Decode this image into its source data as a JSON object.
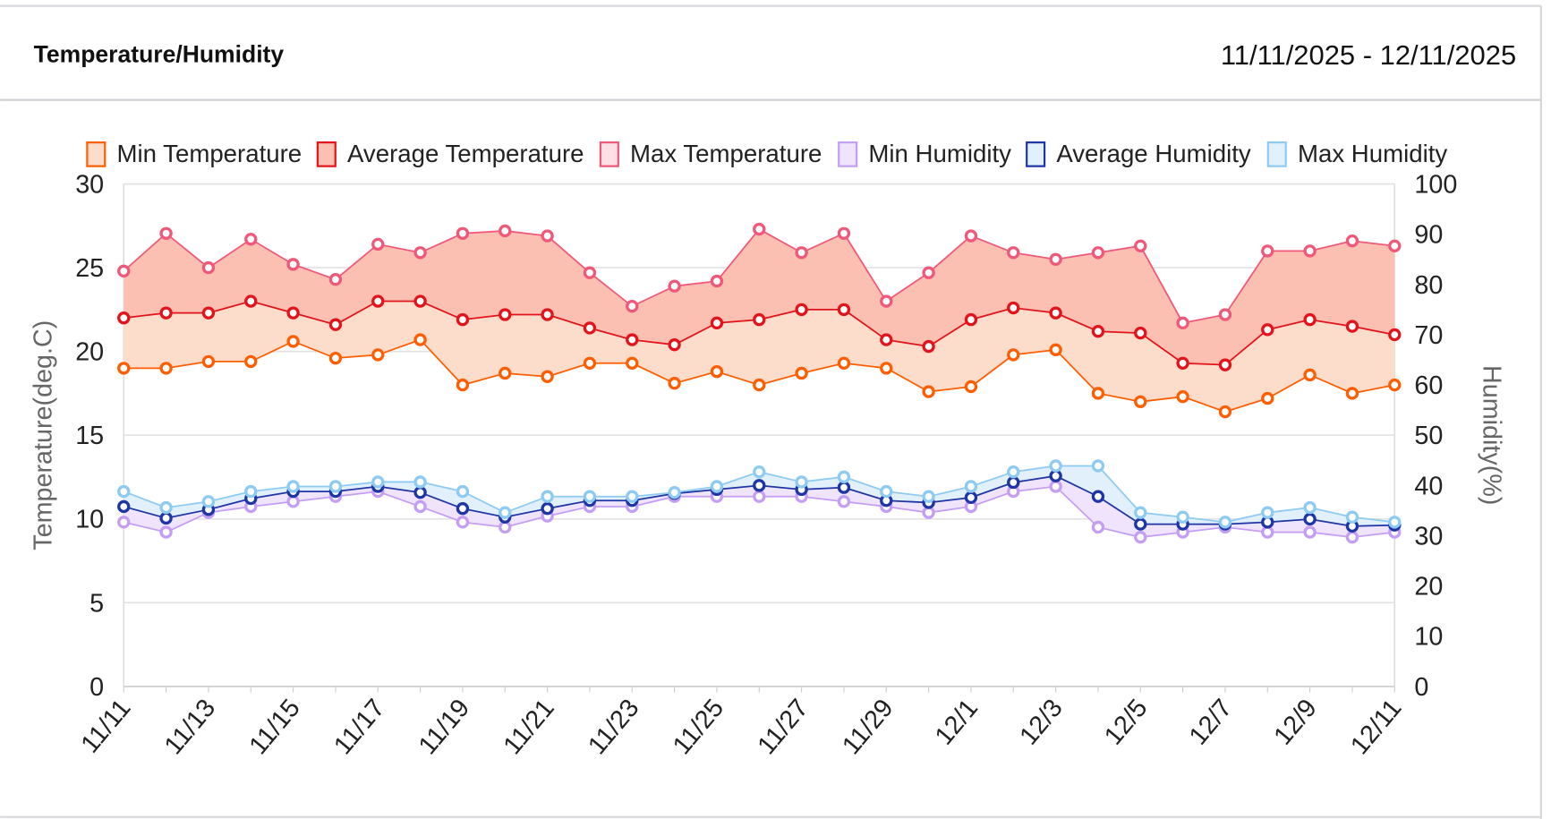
{
  "header": {
    "title": "Temperature/Humidity",
    "date_range": "11/11/2025 - 12/11/2025"
  },
  "chart_data": {
    "type": "line",
    "xlabel": "",
    "ylabel": "Temperature(deg.C)",
    "y2label": "Humidity(%)",
    "ylim": [
      0,
      30
    ],
    "y2lim": [
      0,
      100
    ],
    "yticks": [
      "0",
      "5",
      "10",
      "15",
      "20",
      "25",
      "30"
    ],
    "y2ticks": [
      "0",
      "10",
      "20",
      "30",
      "40",
      "50",
      "60",
      "70",
      "80",
      "90",
      "100"
    ],
    "grid": true,
    "legend": "top",
    "categories": [
      "11/11",
      "11/12",
      "11/13",
      "11/14",
      "11/15",
      "11/16",
      "11/17",
      "11/18",
      "11/19",
      "11/20",
      "11/21",
      "11/22",
      "11/23",
      "11/24",
      "11/25",
      "11/26",
      "11/27",
      "11/28",
      "11/29",
      "11/30",
      "12/1",
      "12/2",
      "12/3",
      "12/4",
      "12/5",
      "12/6",
      "12/7",
      "12/8",
      "12/9",
      "12/10",
      "12/11"
    ],
    "xtick_labels": [
      "11/11",
      "11/13",
      "11/15",
      "11/17",
      "11/19",
      "11/21",
      "11/23",
      "11/25",
      "11/27",
      "11/29",
      "12/1",
      "12/3",
      "12/5",
      "12/7",
      "12/9",
      "12/11"
    ],
    "series": [
      {
        "name": "Min Temperature",
        "axis": "left",
        "color": "#ff5e00",
        "fill": "#fcdcca",
        "values": [
          19.0,
          19.0,
          19.4,
          19.4,
          20.6,
          19.6,
          19.8,
          20.7,
          18.0,
          18.7,
          18.5,
          19.3,
          19.3,
          18.1,
          18.8,
          18.0,
          18.7,
          19.3,
          19.0,
          17.6,
          17.9,
          19.8,
          20.1,
          17.5,
          17.0,
          17.3,
          16.4,
          17.2,
          18.6,
          17.5,
          18.0
        ]
      },
      {
        "name": "Average Temperature",
        "axis": "left",
        "color": "#e3131b",
        "fill": "#fbc0b2",
        "values": [
          22.0,
          22.3,
          22.3,
          23.0,
          22.3,
          21.6,
          23.0,
          23.0,
          21.9,
          22.2,
          22.2,
          21.4,
          20.7,
          20.4,
          21.7,
          21.9,
          22.5,
          22.5,
          20.7,
          20.3,
          21.9,
          22.6,
          22.3,
          21.2,
          21.1,
          19.3,
          19.2,
          21.3,
          21.9,
          21.5,
          21.0
        ]
      },
      {
        "name": "Max Temperature",
        "axis": "left",
        "color": "#f0587a",
        "fill": "#fde0e6",
        "values": [
          24.8,
          27.05,
          25.0,
          26.7,
          25.2,
          24.3,
          26.4,
          25.9,
          27.05,
          27.2,
          26.9,
          24.7,
          22.7,
          23.9,
          24.2,
          27.3,
          25.9,
          27.05,
          23.0,
          24.7,
          26.9,
          25.9,
          25.5,
          25.9,
          26.3,
          21.7,
          22.2,
          26.0,
          26.0,
          26.6,
          26.3
        ]
      },
      {
        "name": "Min Humidity",
        "axis": "right",
        "color": "#c49ef4",
        "fill": "#f0e4fd",
        "values": [
          32.7,
          30.7,
          34.6,
          35.8,
          36.8,
          37.8,
          38.8,
          35.8,
          32.7,
          31.7,
          33.9,
          35.8,
          35.8,
          37.8,
          37.8,
          37.8,
          37.8,
          36.8,
          35.8,
          34.6,
          35.8,
          38.8,
          39.8,
          31.7,
          29.7,
          30.7,
          31.7,
          30.7,
          30.7,
          29.7,
          30.7
        ]
      },
      {
        "name": "Average Humidity",
        "axis": "right",
        "color": "#1e35a6",
        "fill": "#e2f0fc",
        "values": [
          35.8,
          33.5,
          35.2,
          37.4,
          38.8,
          38.8,
          39.8,
          38.6,
          35.4,
          33.7,
          35.4,
          37.0,
          37.0,
          38.4,
          39.2,
          40.0,
          39.2,
          39.6,
          37.0,
          36.6,
          37.6,
          40.6,
          41.9,
          37.8,
          32.3,
          32.3,
          32.3,
          32.7,
          33.3,
          31.9,
          32.1
        ]
      },
      {
        "name": "Max Humidity",
        "axis": "right",
        "color": "#8ecbf2",
        "fill": "#e2f0fc",
        "values": [
          38.8,
          35.6,
          36.8,
          38.8,
          39.8,
          39.8,
          40.7,
          40.7,
          38.8,
          34.6,
          37.8,
          37.8,
          37.8,
          38.6,
          39.8,
          42.7,
          40.7,
          41.7,
          38.8,
          37.8,
          39.8,
          42.7,
          43.9,
          43.9,
          34.6,
          33.7,
          32.7,
          34.6,
          35.6,
          33.7,
          32.7
        ]
      }
    ]
  }
}
